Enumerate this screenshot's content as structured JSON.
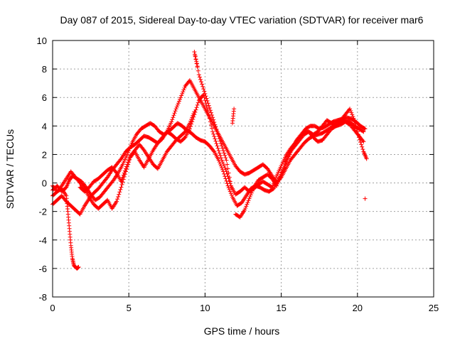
{
  "chart_data": {
    "type": "scatter",
    "title": "Day 087 of 2015, Sidereal Day-to-day VTEC variation (SDTVAR) for receiver mar6",
    "xlabel": "GPS time / hours",
    "ylabel": "SDTVAR / TECUs",
    "xlim": [
      0,
      25
    ],
    "ylim": [
      -8,
      10
    ],
    "xticks": [
      "0",
      "5",
      "10",
      "15",
      "20",
      "25"
    ],
    "yticks": [
      "-8",
      "-6",
      "-4",
      "-2",
      "0",
      "2",
      "4",
      "6",
      "8",
      "10"
    ],
    "xtick_values": [
      0,
      5,
      10,
      15,
      20,
      25
    ],
    "ytick_values": [
      -8,
      -6,
      -4,
      -2,
      0,
      2,
      4,
      6,
      8,
      10
    ],
    "grid": true,
    "marker": "+",
    "color": "#ff0000",
    "series": [
      {
        "points": [
          [
            0.0,
            -0.5
          ],
          [
            0.3,
            -0.2
          ],
          [
            0.6,
            -0.6
          ],
          [
            0.9,
            -0.3
          ],
          [
            1.1,
            0.2
          ],
          [
            1.3,
            0.5
          ],
          [
            1.6,
            0.3
          ],
          [
            1.9,
            0.1
          ],
          [
            2.2,
            -0.3
          ],
          [
            2.5,
            -0.8
          ],
          [
            2.8,
            -1.2
          ],
          [
            3.1,
            -1.0
          ],
          [
            3.4,
            -0.6
          ],
          [
            3.7,
            -0.2
          ],
          [
            4.0,
            0.2
          ],
          [
            4.3,
            0.7
          ],
          [
            4.6,
            1.3
          ],
          [
            4.9,
            2.0
          ],
          [
            5.2,
            2.8
          ],
          [
            5.5,
            3.4
          ],
          [
            5.8,
            3.8
          ],
          [
            6.1,
            4.0
          ],
          [
            6.4,
            4.2
          ],
          [
            6.7,
            4.0
          ],
          [
            7.0,
            3.6
          ],
          [
            7.3,
            3.4
          ],
          [
            7.6,
            3.6
          ],
          [
            7.9,
            3.9
          ],
          [
            8.2,
            4.2
          ],
          [
            8.5,
            4.0
          ],
          [
            8.8,
            3.7
          ],
          [
            9.1,
            3.5
          ],
          [
            9.4,
            3.2
          ],
          [
            9.7,
            3.0
          ],
          [
            10.0,
            2.9
          ],
          [
            10.3,
            2.6
          ],
          [
            10.6,
            2.2
          ],
          [
            10.9,
            1.6
          ],
          [
            11.2,
            0.8
          ],
          [
            11.5,
            -0.2
          ],
          [
            11.8,
            -1.0
          ],
          [
            12.1,
            -1.6
          ],
          [
            12.4,
            -1.4
          ],
          [
            12.7,
            -0.9
          ],
          [
            13.0,
            -0.4
          ],
          [
            13.3,
            -0.2
          ],
          [
            13.6,
            -0.3
          ],
          [
            13.9,
            -0.5
          ],
          [
            14.2,
            -0.6
          ],
          [
            14.5,
            -0.4
          ],
          [
            14.8,
            0.2
          ],
          [
            15.1,
            0.8
          ],
          [
            15.4,
            1.6
          ],
          [
            15.7,
            2.4
          ],
          [
            16.0,
            3.0
          ],
          [
            16.3,
            3.4
          ],
          [
            16.6,
            3.8
          ],
          [
            16.9,
            4.0
          ],
          [
            17.2,
            4.0
          ],
          [
            17.5,
            3.8
          ],
          [
            17.8,
            3.9
          ],
          [
            18.1,
            4.1
          ],
          [
            18.4,
            4.3
          ],
          [
            18.7,
            4.4
          ],
          [
            19.0,
            4.5
          ],
          [
            19.3,
            4.6
          ],
          [
            19.6,
            4.5
          ],
          [
            19.9,
            4.3
          ],
          [
            20.2,
            4.0
          ],
          [
            20.5,
            3.8
          ]
        ]
      },
      {
        "points": [
          [
            0.0,
            -1.5
          ],
          [
            0.3,
            -1.2
          ],
          [
            0.6,
            -0.9
          ],
          [
            0.9,
            -1.3
          ],
          [
            1.2,
            -1.6
          ],
          [
            1.5,
            -1.9
          ],
          [
            1.8,
            -2.2
          ],
          [
            2.1,
            -1.6
          ],
          [
            2.4,
            -1.1
          ],
          [
            2.7,
            -0.7
          ],
          [
            3.0,
            -0.4
          ],
          [
            3.3,
            0.0
          ],
          [
            3.6,
            0.4
          ],
          [
            3.9,
            0.9
          ],
          [
            4.2,
            1.3
          ],
          [
            4.5,
            1.7
          ],
          [
            4.8,
            2.2
          ],
          [
            5.1,
            2.5
          ],
          [
            5.4,
            2.7
          ],
          [
            5.7,
            3.0
          ],
          [
            6.0,
            3.3
          ],
          [
            6.3,
            3.2
          ],
          [
            6.6,
            3.0
          ],
          [
            6.9,
            2.8
          ],
          [
            7.2,
            3.1
          ],
          [
            7.5,
            3.6
          ],
          [
            7.8,
            4.3
          ],
          [
            8.1,
            5.2
          ],
          [
            8.4,
            6.0
          ],
          [
            8.7,
            6.8
          ],
          [
            9.0,
            7.2
          ],
          [
            9.3,
            6.6
          ],
          [
            9.6,
            6.0
          ],
          [
            9.9,
            5.4
          ],
          [
            10.2,
            4.8
          ],
          [
            10.5,
            4.2
          ],
          [
            10.8,
            3.6
          ],
          [
            11.1,
            3.0
          ],
          [
            11.4,
            2.4
          ],
          [
            11.7,
            1.8
          ],
          [
            12.0,
            1.2
          ],
          [
            12.3,
            0.8
          ],
          [
            12.6,
            0.6
          ],
          [
            12.9,
            0.7
          ],
          [
            13.2,
            0.9
          ],
          [
            13.5,
            1.1
          ],
          [
            13.8,
            1.3
          ],
          [
            14.1,
            1.0
          ],
          [
            14.4,
            0.5
          ],
          [
            14.7,
            0.0
          ],
          [
            15.0,
            0.4
          ],
          [
            15.3,
            1.0
          ],
          [
            15.6,
            1.6
          ],
          [
            15.9,
            2.0
          ],
          [
            16.2,
            2.4
          ],
          [
            16.5,
            2.8
          ],
          [
            16.8,
            3.1
          ],
          [
            17.1,
            3.3
          ],
          [
            17.4,
            3.4
          ],
          [
            17.7,
            3.5
          ],
          [
            18.0,
            3.7
          ],
          [
            18.3,
            3.9
          ],
          [
            18.6,
            4.2
          ],
          [
            18.9,
            4.4
          ],
          [
            19.2,
            4.8
          ],
          [
            19.5,
            5.2
          ],
          [
            19.8,
            4.4
          ],
          [
            20.1,
            3.2
          ],
          [
            20.4,
            2.2
          ],
          [
            20.6,
            1.7
          ]
        ]
      },
      {
        "points": [
          [
            0.0,
            -0.9
          ],
          [
            0.3,
            -0.6
          ],
          [
            0.6,
            -0.2
          ],
          [
            0.9,
            0.3
          ],
          [
            1.2,
            0.8
          ],
          [
            1.5,
            0.4
          ],
          [
            1.8,
            0.0
          ],
          [
            2.1,
            -0.4
          ],
          [
            2.4,
            -1.0
          ],
          [
            2.7,
            -1.5
          ],
          [
            3.0,
            -1.8
          ],
          [
            3.3,
            -1.5
          ],
          [
            3.6,
            -1.2
          ],
          [
            3.9,
            -1.8
          ],
          [
            4.2,
            -1.3
          ],
          [
            4.5,
            -0.3
          ],
          [
            4.8,
            0.8
          ],
          [
            5.1,
            1.8
          ],
          [
            5.4,
            2.2
          ],
          [
            5.7,
            1.6
          ],
          [
            6.0,
            1.1
          ],
          [
            6.3,
            1.7
          ],
          [
            6.6,
            2.3
          ],
          [
            6.9,
            2.8
          ],
          [
            7.2,
            3.2
          ],
          [
            7.5,
            3.6
          ],
          [
            7.8,
            3.4
          ],
          [
            8.1,
            3.1
          ],
          [
            8.4,
            2.9
          ],
          [
            8.7,
            3.2
          ],
          [
            9.0,
            3.8
          ],
          [
            9.3,
            4.8
          ],
          [
            9.6,
            5.8
          ],
          [
            9.9,
            6.2
          ],
          [
            10.2,
            5.0
          ],
          [
            10.5,
            3.6
          ],
          [
            10.8,
            2.6
          ],
          [
            11.1,
            1.6
          ],
          [
            11.4,
            0.8
          ],
          [
            11.7,
            -0.2
          ],
          [
            12.0,
            -0.8
          ],
          [
            12.3,
            -0.6
          ],
          [
            12.6,
            -0.3
          ],
          [
            12.9,
            -0.6
          ],
          [
            13.2,
            -0.4
          ],
          [
            13.5,
            -0.1
          ],
          [
            13.8,
            0.1
          ],
          [
            14.1,
            -0.1
          ],
          [
            14.4,
            -0.3
          ],
          [
            14.7,
            0.5
          ],
          [
            15.0,
            1.2
          ],
          [
            15.3,
            1.9
          ],
          [
            15.6,
            2.4
          ],
          [
            15.9,
            2.8
          ],
          [
            16.2,
            3.2
          ],
          [
            16.5,
            3.6
          ],
          [
            16.8,
            3.6
          ],
          [
            17.1,
            3.4
          ],
          [
            17.4,
            3.6
          ],
          [
            17.7,
            4.0
          ],
          [
            18.0,
            4.4
          ],
          [
            18.3,
            4.2
          ],
          [
            18.6,
            4.0
          ],
          [
            18.9,
            4.1
          ],
          [
            19.2,
            4.3
          ],
          [
            19.5,
            4.1
          ],
          [
            19.8,
            3.7
          ],
          [
            20.1,
            3.3
          ],
          [
            20.4,
            2.9
          ]
        ]
      },
      {
        "points": [
          [
            0.0,
            -0.2
          ],
          [
            0.3,
            -0.6
          ],
          [
            0.6,
            -0.4
          ],
          [
            0.9,
            -0.9
          ],
          [
            1.0,
            -2.0
          ],
          [
            1.1,
            -3.2
          ],
          [
            1.2,
            -4.4
          ],
          [
            1.3,
            -5.3
          ],
          [
            1.4,
            -5.8
          ],
          [
            1.6,
            -6.0
          ],
          [
            1.7,
            -5.9
          ],
          [
            1.8,
            -0.3
          ],
          [
            2.1,
            -0.6
          ],
          [
            2.4,
            -0.3
          ],
          [
            2.7,
            0.1
          ],
          [
            3.0,
            0.3
          ],
          [
            3.3,
            0.6
          ],
          [
            3.6,
            0.9
          ],
          [
            3.9,
            1.1
          ],
          [
            4.2,
            0.7
          ],
          [
            4.5,
            0.1
          ],
          [
            4.8,
            1.0
          ],
          [
            5.1,
            1.9
          ],
          [
            5.4,
            2.3
          ],
          [
            5.7,
            2.7
          ],
          [
            6.0,
            2.3
          ],
          [
            6.3,
            1.8
          ],
          [
            6.6,
            1.3
          ],
          [
            6.9,
            1.0
          ],
          [
            7.2,
            1.6
          ],
          [
            7.5,
            2.2
          ],
          [
            7.8,
            2.6
          ],
          [
            8.1,
            3.0
          ],
          [
            8.4,
            3.3
          ],
          [
            8.7,
            3.6
          ],
          [
            9.0,
            4.2
          ],
          [
            9.3,
            5.0
          ],
          [
            9.5,
            8.2
          ],
          [
            9.3,
            9.2
          ],
          [
            9.6,
            7.6
          ],
          [
            9.9,
            6.6
          ],
          [
            10.2,
            5.6
          ],
          [
            10.5,
            4.6
          ],
          [
            10.8,
            3.6
          ],
          [
            11.1,
            2.6
          ],
          [
            11.4,
            1.6
          ],
          [
            11.7,
            -0.2
          ],
          [
            11.8,
            4.2
          ],
          [
            11.9,
            5.2
          ],
          [
            12.0,
            -2.2
          ],
          [
            12.3,
            -2.4
          ],
          [
            12.6,
            -1.9
          ],
          [
            12.9,
            -1.1
          ],
          [
            13.2,
            -0.3
          ],
          [
            13.5,
            0.2
          ],
          [
            13.8,
            0.4
          ],
          [
            14.1,
            0.6
          ],
          [
            14.4,
            0.3
          ],
          [
            14.7,
            -0.2
          ],
          [
            15.0,
            0.6
          ],
          [
            15.3,
            1.5
          ],
          [
            15.6,
            2.2
          ],
          [
            15.9,
            2.6
          ],
          [
            16.2,
            3.0
          ],
          [
            16.5,
            3.4
          ],
          [
            16.8,
            3.6
          ],
          [
            17.1,
            3.2
          ],
          [
            17.4,
            2.9
          ],
          [
            17.7,
            3.0
          ],
          [
            18.0,
            3.4
          ],
          [
            18.3,
            3.8
          ],
          [
            18.6,
            4.0
          ],
          [
            18.9,
            4.2
          ],
          [
            19.2,
            4.4
          ],
          [
            19.5,
            4.3
          ],
          [
            19.8,
            4.0
          ],
          [
            20.1,
            3.8
          ],
          [
            20.4,
            3.6
          ],
          [
            20.5,
            -1.1
          ]
        ]
      }
    ]
  }
}
